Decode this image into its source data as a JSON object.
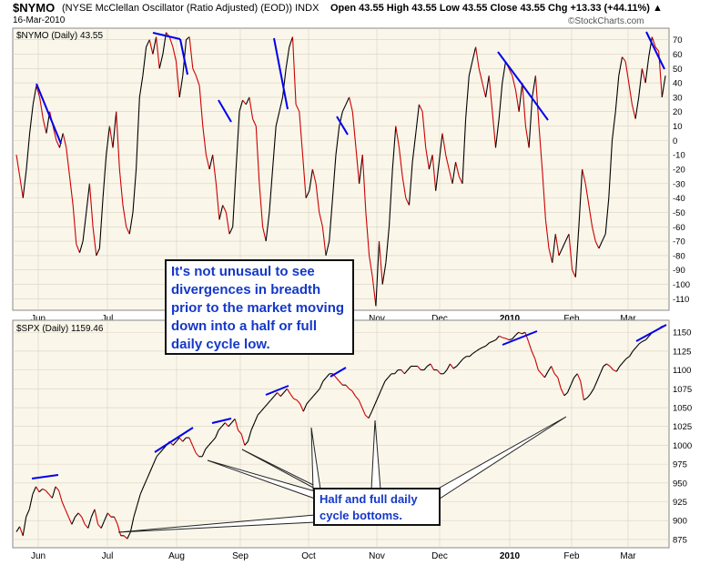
{
  "header": {
    "symbol": "$NYMO",
    "description": "(NYSE McClellan Oscillator (Ratio Adjusted) (EOD))  INDX",
    "date": "16-Mar-2010",
    "quote": "Open 43.55  High 43.55  Low 43.55  Close 43.55  Chg +13.33 (+44.11%) ▲",
    "brand": "©StockCharts.com"
  },
  "annotations": {
    "divergence_note": "It's not unusaul to see divergences in breadth prior to the market moving down into a half or full daily cycle low.",
    "bottoms_note": "Half and full daily cycle bottoms."
  },
  "colors": {
    "line_up": "#000000",
    "line_down": "#cc0000",
    "trend": "#0000ee",
    "callout": "#1438c8",
    "panel_bg": "#faf6ea",
    "grid": "#d8d2c0"
  },
  "chart_data": [
    {
      "type": "line",
      "legend": "$NYMO (Daily) 43.55",
      "x_tick_labels": [
        "Jun",
        "Jul",
        "Aug",
        "Sep",
        "Oct",
        "Nov",
        "Dec",
        "2010",
        "Feb",
        "Mar"
      ],
      "y_ticks": [
        70,
        60,
        50,
        40,
        30,
        20,
        10,
        0,
        -10,
        -20,
        -30,
        -40,
        -50,
        -60,
        -70,
        -80,
        -90,
        -100,
        -110
      ],
      "ylim": [
        -118,
        78
      ],
      "grid": true,
      "values": [
        -10,
        -25,
        -40,
        -20,
        5,
        25,
        38,
        30,
        15,
        5,
        20,
        10,
        0,
        -5,
        5,
        -5,
        -25,
        -45,
        -72,
        -78,
        -70,
        -50,
        -30,
        -60,
        -80,
        -75,
        -40,
        -10,
        10,
        -5,
        20,
        -20,
        -45,
        -60,
        -65,
        -50,
        -20,
        30,
        45,
        65,
        70,
        60,
        72,
        50,
        60,
        75,
        72,
        65,
        55,
        30,
        45,
        70,
        72,
        50,
        45,
        38,
        10,
        -10,
        -20,
        -10,
        -30,
        -55,
        -45,
        -50,
        -65,
        -60,
        -20,
        20,
        28,
        25,
        30,
        15,
        10,
        -30,
        -60,
        -70,
        -50,
        -20,
        10,
        20,
        30,
        50,
        65,
        72,
        25,
        20,
        -10,
        -40,
        -35,
        -20,
        -30,
        -50,
        -60,
        -80,
        -70,
        -40,
        -10,
        10,
        20,
        25,
        30,
        20,
        -5,
        -30,
        -10,
        -50,
        -80,
        -95,
        -115,
        -70,
        -100,
        -85,
        -60,
        -20,
        10,
        -5,
        -25,
        -40,
        -45,
        -15,
        5,
        25,
        20,
        -5,
        -20,
        -10,
        -35,
        -15,
        5,
        -10,
        -20,
        -30,
        -15,
        -25,
        -30,
        15,
        45,
        55,
        65,
        50,
        40,
        30,
        45,
        20,
        -5,
        15,
        40,
        55,
        50,
        45,
        35,
        20,
        40,
        10,
        -5,
        30,
        45,
        10,
        -20,
        -55,
        -75,
        -85,
        -65,
        -80,
        -75,
        -70,
        -65,
        -90,
        -95,
        -60,
        -20,
        -30,
        -45,
        -60,
        -70,
        -75,
        -70,
        -65,
        -40,
        0,
        20,
        45,
        58,
        55,
        40,
        25,
        15,
        30,
        50,
        40,
        58,
        72,
        65,
        62,
        30,
        45
      ]
    },
    {
      "type": "line",
      "legend": "$SPX (Daily) 1159.46",
      "x_tick_labels": [
        "Jun",
        "Jul",
        "Aug",
        "Sep",
        "Oct",
        "Nov",
        "Dec",
        "2010",
        "Feb",
        "Mar"
      ],
      "y_ticks": [
        1150,
        1125,
        1100,
        1075,
        1050,
        1025,
        1000,
        975,
        950,
        925,
        900,
        875
      ],
      "ylim": [
        864,
        1166
      ],
      "grid": true,
      "values": [
        885,
        892,
        880,
        905,
        915,
        935,
        945,
        938,
        942,
        940,
        935,
        930,
        945,
        940,
        925,
        915,
        905,
        895,
        905,
        910,
        905,
        895,
        890,
        905,
        915,
        895,
        890,
        900,
        910,
        905,
        905,
        895,
        880,
        880,
        876,
        885,
        905,
        920,
        935,
        945,
        955,
        965,
        975,
        985,
        990,
        995,
        1000,
        1005,
        1000,
        1005,
        1010,
        1005,
        1010,
        1010,
        1000,
        990,
        985,
        985,
        995,
        1000,
        1005,
        1010,
        1020,
        1025,
        1030,
        1025,
        1030,
        1035,
        1020,
        1015,
        1000,
        1005,
        1020,
        1030,
        1040,
        1045,
        1050,
        1055,
        1060,
        1065,
        1070,
        1065,
        1070,
        1075,
        1068,
        1062,
        1060,
        1055,
        1045,
        1055,
        1060,
        1065,
        1070,
        1075,
        1085,
        1090,
        1095,
        1095,
        1090,
        1085,
        1080,
        1080,
        1075,
        1072,
        1065,
        1060,
        1050,
        1040,
        1036,
        1045,
        1055,
        1065,
        1075,
        1085,
        1090,
        1095,
        1095,
        1100,
        1100,
        1095,
        1100,
        1105,
        1105,
        1105,
        1100,
        1100,
        1105,
        1108,
        1100,
        1100,
        1095,
        1095,
        1100,
        1108,
        1102,
        1105,
        1110,
        1115,
        1118,
        1118,
        1122,
        1125,
        1128,
        1130,
        1132,
        1136,
        1138,
        1140,
        1145,
        1143,
        1142,
        1140,
        1141,
        1146,
        1150,
        1148,
        1150,
        1138,
        1125,
        1115,
        1100,
        1095,
        1090,
        1098,
        1105,
        1095,
        1090,
        1075,
        1066,
        1070,
        1080,
        1090,
        1095,
        1085,
        1060,
        1063,
        1068,
        1075,
        1085,
        1095,
        1105,
        1108,
        1105,
        1100,
        1098,
        1105,
        1110,
        1115,
        1118,
        1125,
        1130,
        1135,
        1138,
        1140,
        1145,
        1150,
        1152,
        1155,
        1158,
        1159
      ]
    }
  ]
}
